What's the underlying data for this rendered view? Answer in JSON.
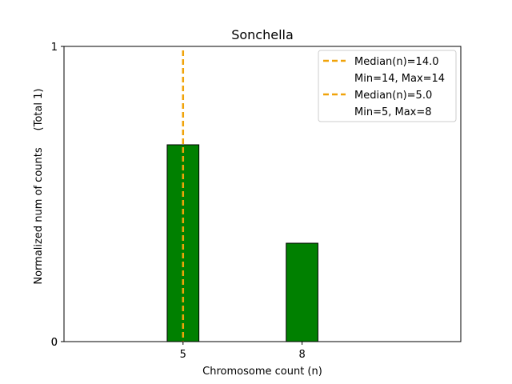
{
  "chart_data": {
    "type": "bar",
    "title": "Sonchella",
    "xlabel": "Chromosome count (n)",
    "ylabel": "Normalized num of counts",
    "ylabel_note": "(Total 1)",
    "xlim": [
      2,
      12
    ],
    "ylim": [
      0,
      1
    ],
    "bars": [
      {
        "x": 5,
        "value": 0.6667
      },
      {
        "x": 8,
        "value": 0.3333
      }
    ],
    "bar_color": "#008000",
    "bar_edge_color": "#000000",
    "x_ticks": [
      5,
      8
    ],
    "y_ticks": [
      0,
      1
    ],
    "y_ticks_extra_label": "0",
    "median_lines": [
      {
        "x": 5,
        "color": "#f0a30a"
      }
    ],
    "legend": {
      "placement": "top-right",
      "entries": [
        {
          "line": "Median(n)=14.0",
          "sub": "Min=14, Max=14",
          "color": "#f0a30a"
        },
        {
          "line": "Median(n)=5.0",
          "sub": "Min=5, Max=8",
          "color": "#f0a30a"
        }
      ]
    },
    "grid": false
  }
}
